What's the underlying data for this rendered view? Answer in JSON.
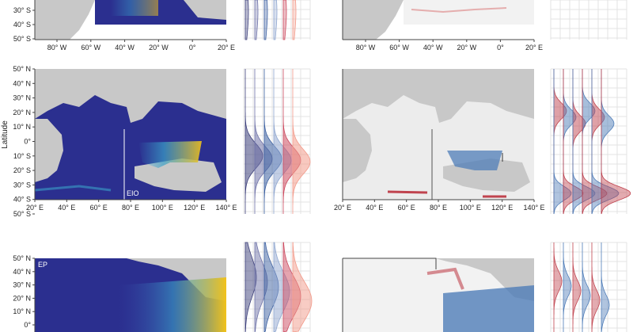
{
  "figure": {
    "ylabel": "Latitude"
  },
  "chart_data": [
    {
      "type": "heatmap",
      "panel": "top-left map (partially cropped)",
      "x_ticks": [
        "80° W",
        "60° W",
        "40° W",
        "20° W",
        "0°",
        "20° E"
      ],
      "y_ticks": [
        "30° S",
        "40° S",
        "50° S"
      ],
      "colormap": [
        "#2b2f8f",
        "#3a4fb0",
        "#3aa0c8",
        "#f2c21a"
      ]
    },
    {
      "type": "heatmap",
      "panel": "top-right anomaly map (partially cropped)",
      "x_ticks": [
        "80° W",
        "60° W",
        "40° W",
        "20° W",
        "0°",
        "20° E"
      ],
      "colormap": [
        "#3a6fb0",
        "#f0f0f0",
        "#c23a3a"
      ]
    },
    {
      "type": "heatmap",
      "panel": "middle-left map",
      "region_label": "EIO",
      "x_ticks": [
        "20° E",
        "40° E",
        "60° E",
        "80° E",
        "100° E",
        "120° E",
        "140° E"
      ],
      "y_ticks": [
        "50° N",
        "40° N",
        "30° N",
        "20° N",
        "10° N",
        "0°",
        "10° S",
        "20° S",
        "30° S",
        "40° S",
        "50° S"
      ],
      "colormap": [
        "#2b2f8f",
        "#3a4fb0",
        "#3aa0c8",
        "#f2c21a"
      ]
    },
    {
      "type": "heatmap",
      "panel": "middle-right anomaly map",
      "x_ticks": [
        "20° E",
        "40° E",
        "60° E",
        "80° E",
        "100° E",
        "120° E",
        "140° E"
      ],
      "colormap": [
        "#3a6fb0",
        "#f0f0f0",
        "#c23a3a"
      ]
    },
    {
      "type": "heatmap",
      "panel": "bottom-left map (partially cropped)",
      "region_label": "EP",
      "y_ticks": [
        "50° N",
        "40° N",
        "30° N",
        "20° N",
        "10° N",
        "0°"
      ],
      "colormap": [
        "#2b2f8f",
        "#3a4fb0",
        "#3aa0c8",
        "#f2c21a"
      ]
    },
    {
      "type": "area",
      "panel": "latitudinal density profiles",
      "series": [
        {
          "color": "#3c3f7a",
          "row2_peak_lat": -10
        },
        {
          "color": "#6f73a8",
          "row2_peak_lat": -12
        },
        {
          "color": "#3b5fa0",
          "row2_peak_lat": -12
        },
        {
          "color": "#8fa6cf",
          "row2_peak_lat": -13
        },
        {
          "color": "#cc4a5f",
          "row2_peak_lat": -13
        },
        {
          "color": "#f29a8a",
          "row2_peak_lat": -14
        }
      ]
    },
    {
      "type": "area",
      "panel": "latitudinal anomaly profiles",
      "series": [
        {
          "color": "#c0444f"
        },
        {
          "color": "#4f7db8"
        }
      ]
    }
  ]
}
